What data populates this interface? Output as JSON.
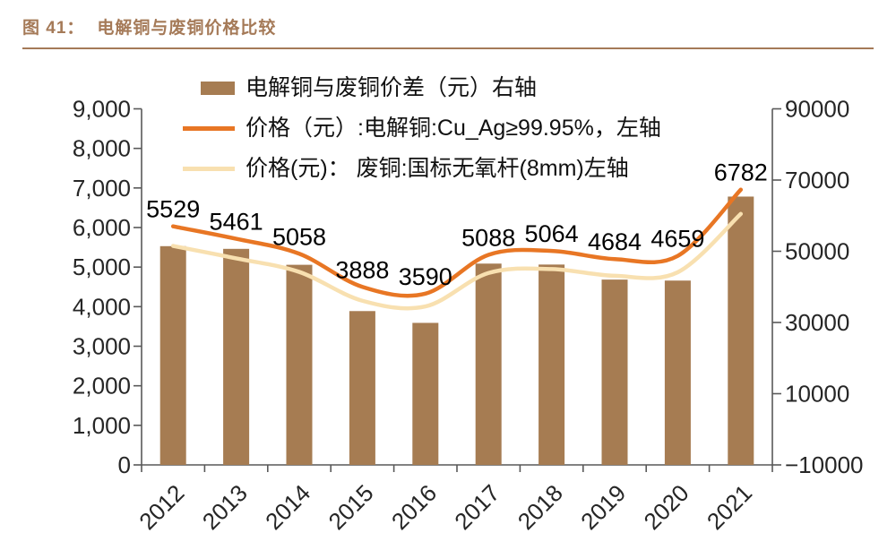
{
  "header": {
    "caption_label": "图 41：",
    "caption_title": "电解铜与废铜价格比较"
  },
  "colors": {
    "accent_brown": "#a57a58",
    "bar": "#a67c52",
    "line_electrolytic": "#e87624",
    "line_scrap": "#f8e0b0",
    "axis": "#595959",
    "tick_text": "#262626",
    "data_label_text": "#000000"
  },
  "legend": {
    "items": [
      {
        "label": "电解铜与废铜价差（元）右轴",
        "swatch": "bar",
        "color": "#a67c52"
      },
      {
        "label": "价格（元）:电解铜:Cu_Ag≥99.95%，左轴",
        "swatch": "line",
        "color": "#e87624"
      },
      {
        "label": "价格(元)： 废铜:国标无氧杆(8mm)左轴",
        "swatch": "line",
        "color": "#f8e0b0"
      }
    ]
  },
  "chart_data": {
    "type": "combo",
    "categories": [
      "2012",
      "2013",
      "2014",
      "2015",
      "2016",
      "2017",
      "2018",
      "2019",
      "2020",
      "2021"
    ],
    "series": [
      {
        "name": "电解铜与废铜价差（元）右轴",
        "type": "bar",
        "value_scale": "left",
        "color_key": "bar",
        "values": [
          5529,
          5461,
          5058,
          3888,
          3590,
          5088,
          5064,
          4684,
          4659,
          6782
        ],
        "data_labels": [
          "5529",
          "5461",
          "5058",
          "3888",
          "3590",
          "5088",
          "5064",
          "4684",
          "4659",
          "6782"
        ]
      },
      {
        "name": "价格（元）:电解铜:Cu_Ag≥99.95%，左轴",
        "type": "line",
        "value_scale": "right",
        "color_key": "line_electrolytic",
        "values": [
          57000,
          53500,
          49300,
          40000,
          38100,
          49000,
          50100,
          47800,
          48700,
          67300
        ]
      },
      {
        "name": "价格(元)： 废铜:国标无氧杆(8mm)左轴",
        "type": "line",
        "value_scale": "right",
        "color_key": "line_scrap",
        "values": [
          51500,
          48000,
          44200,
          36100,
          34500,
          43900,
          45000,
          43100,
          44100,
          60500
        ]
      }
    ],
    "axes": {
      "left": {
        "min": 0,
        "max": 9000,
        "tick_labels": [
          "9,000",
          "8,000",
          "7,000",
          "6,000",
          "5,000",
          "4,000",
          "3,000",
          "2,000",
          "1,000",
          "0"
        ]
      },
      "right": {
        "min": -10000,
        "max": 90000,
        "tick_labels": [
          "90000",
          "70000",
          "50000",
          "30000",
          "10000",
          "−10000"
        ]
      }
    },
    "grid": false,
    "legend_position": "top-left-inside",
    "title": "电解铜与废铜价格比较"
  }
}
